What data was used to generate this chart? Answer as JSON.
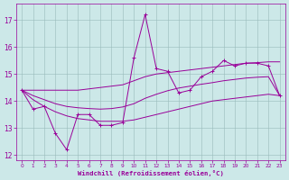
{
  "xlabel": "Windchill (Refroidissement éolien,°C)",
  "x": [
    0,
    1,
    2,
    3,
    4,
    5,
    6,
    7,
    8,
    9,
    10,
    11,
    12,
    13,
    14,
    15,
    16,
    17,
    18,
    19,
    20,
    21,
    22,
    23
  ],
  "y_main": [
    14.4,
    13.7,
    13.8,
    12.8,
    12.2,
    13.5,
    13.5,
    13.1,
    13.1,
    13.2,
    15.6,
    17.2,
    15.2,
    15.1,
    14.3,
    14.4,
    14.9,
    15.1,
    15.5,
    15.3,
    15.4,
    15.4,
    15.3,
    14.2
  ],
  "y_upper": [
    14.4,
    14.4,
    14.4,
    14.4,
    14.4,
    14.4,
    14.45,
    14.5,
    14.55,
    14.6,
    14.75,
    14.9,
    15.0,
    15.05,
    15.1,
    15.15,
    15.2,
    15.25,
    15.3,
    15.35,
    15.4,
    15.42,
    15.45,
    15.45
  ],
  "y_lower": [
    14.4,
    14.05,
    13.8,
    13.6,
    13.45,
    13.35,
    13.3,
    13.25,
    13.25,
    13.25,
    13.3,
    13.4,
    13.5,
    13.6,
    13.7,
    13.8,
    13.9,
    14.0,
    14.05,
    14.1,
    14.15,
    14.2,
    14.25,
    14.2
  ],
  "y_trend": [
    14.4,
    14.2,
    14.05,
    13.9,
    13.8,
    13.75,
    13.72,
    13.7,
    13.72,
    13.78,
    13.9,
    14.1,
    14.25,
    14.38,
    14.48,
    14.55,
    14.62,
    14.68,
    14.75,
    14.8,
    14.85,
    14.88,
    14.9,
    14.2
  ],
  "line_color": "#990099",
  "bg_color": "#cce8e8",
  "grid_color": "#99bbbb",
  "ylim": [
    11.8,
    17.6
  ],
  "xlim": [
    -0.5,
    23.5
  ],
  "yticks": [
    12,
    13,
    14,
    15,
    16,
    17
  ],
  "xticks": [
    0,
    1,
    2,
    3,
    4,
    5,
    6,
    7,
    8,
    9,
    10,
    11,
    12,
    13,
    14,
    15,
    16,
    17,
    18,
    19,
    20,
    21,
    22,
    23
  ]
}
